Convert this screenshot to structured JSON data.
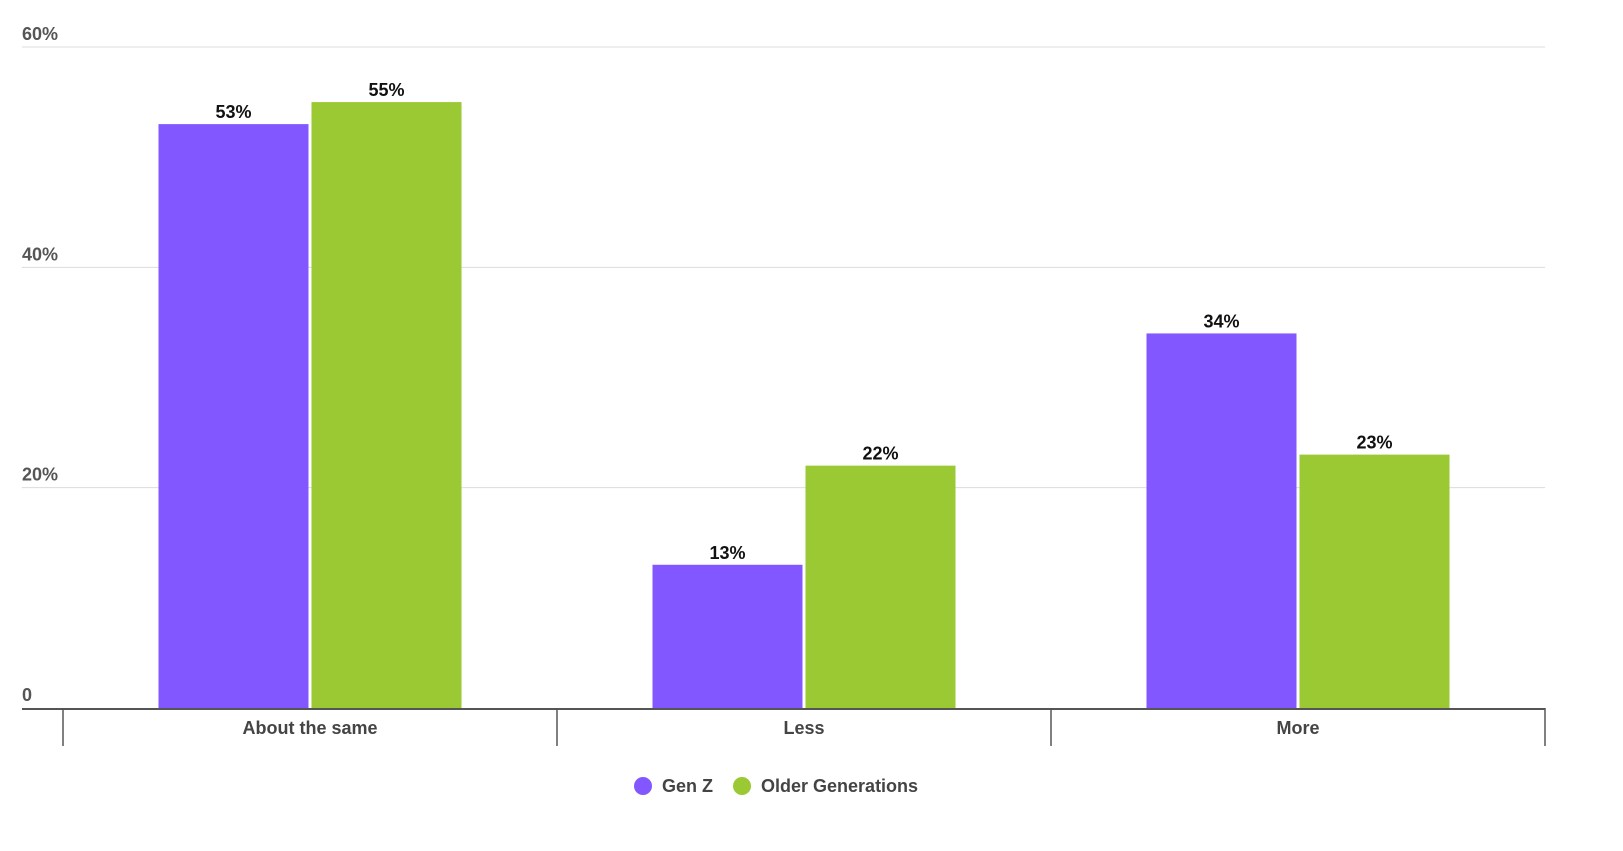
{
  "chart_data": {
    "type": "bar",
    "categories": [
      "About the same",
      "Less",
      "More"
    ],
    "series": [
      {
        "name": "Gen Z",
        "values": [
          53,
          13,
          34
        ],
        "labels": [
          "53%",
          "13%",
          "34%"
        ],
        "color": "#8257ff"
      },
      {
        "name": "Older Generations",
        "values": [
          55,
          22,
          23
        ],
        "labels": [
          "55%",
          "22%",
          "23%"
        ],
        "color": "#9ac934"
      }
    ],
    "ylim": [
      0,
      60
    ],
    "y_ticks": [
      {
        "value": 0,
        "label": "0"
      },
      {
        "value": 20,
        "label": "20%"
      },
      {
        "value": 40,
        "label": "40%"
      },
      {
        "value": 60,
        "label": "60%"
      }
    ],
    "grid": true,
    "legend_position": "bottom-center",
    "title": "",
    "xlabel": "",
    "ylabel": ""
  },
  "colors": {
    "grid": "#dcdcdc",
    "axis": "#555555",
    "tick_text": "#555555",
    "category_text": "#444444",
    "value_text": "#111111"
  }
}
